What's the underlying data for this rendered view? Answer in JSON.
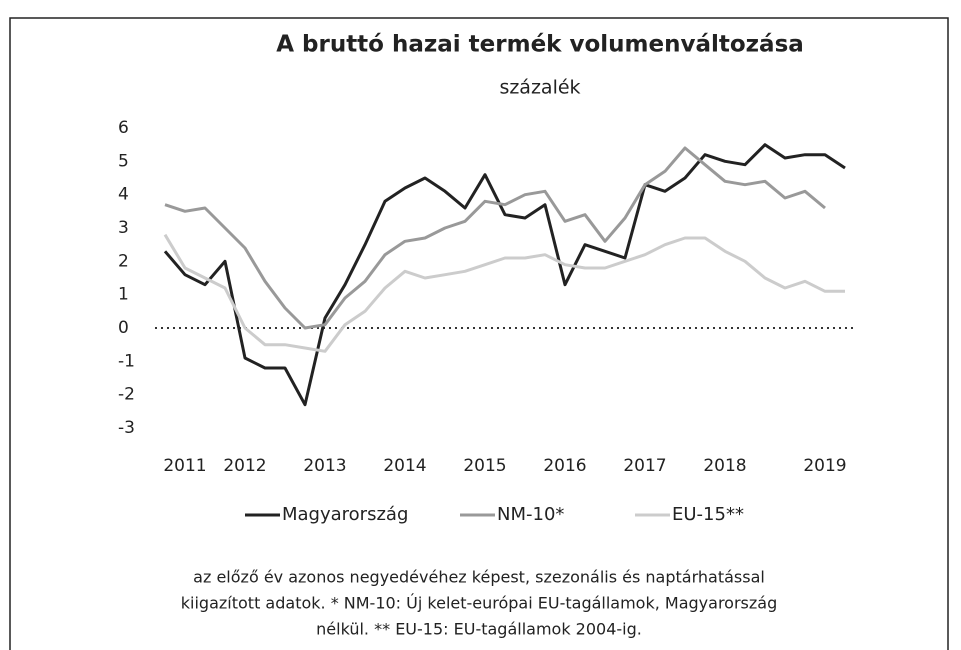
{
  "chart_data": {
    "type": "line",
    "title": "A bruttó hazai termék volumenváltozása",
    "subtitle": "százalék",
    "categories": [
      null,
      "2011",
      null,
      null,
      "2012",
      null,
      null,
      null,
      "2013",
      null,
      null,
      null,
      "2014",
      null,
      null,
      null,
      "2015",
      null,
      null,
      null,
      "2016",
      null,
      null,
      null,
      "2017",
      null,
      null,
      null,
      "2018",
      null,
      null,
      null,
      null,
      "2019",
      null
    ],
    "series": [
      {
        "name": "Magyarország",
        "color": "#222222",
        "values": [
          2.3,
          1.6,
          1.3,
          2.0,
          -0.9,
          -1.2,
          -1.2,
          -2.3,
          0.3,
          1.3,
          2.5,
          3.8,
          4.2,
          4.5,
          4.1,
          3.6,
          4.6,
          3.4,
          3.3,
          3.7,
          1.3,
          2.5,
          2.3,
          2.1,
          4.3,
          4.1,
          4.5,
          5.2,
          5.0,
          4.9,
          5.5,
          5.1,
          5.2,
          5.2,
          4.8
        ]
      },
      {
        "name": "NM-10*",
        "color": "#999999",
        "values": [
          3.7,
          3.5,
          3.6,
          3.0,
          2.4,
          1.4,
          0.6,
          0.0,
          0.1,
          0.9,
          1.4,
          2.2,
          2.6,
          2.7,
          3.0,
          3.2,
          3.8,
          3.7,
          4.0,
          4.1,
          3.2,
          3.4,
          2.6,
          3.3,
          4.3,
          4.7,
          5.4,
          4.9,
          4.4,
          4.3,
          4.4,
          3.9,
          4.1,
          3.6,
          null
        ]
      },
      {
        "name": "EU-15**",
        "color": "#cccccc",
        "values": [
          2.8,
          1.8,
          1.5,
          1.2,
          0.0,
          -0.5,
          -0.5,
          -0.6,
          -0.7,
          0.1,
          0.5,
          1.2,
          1.7,
          1.5,
          1.6,
          1.7,
          1.9,
          2.1,
          2.1,
          2.2,
          1.9,
          1.8,
          1.8,
          2.0,
          2.2,
          2.5,
          2.7,
          2.7,
          2.3,
          2.0,
          1.5,
          1.2,
          1.4,
          1.1,
          1.1
        ]
      }
    ],
    "ylim": [
      -3,
      6
    ],
    "yticks": [
      -3,
      -2,
      -1,
      0,
      1,
      2,
      3,
      4,
      5,
      6
    ],
    "zero_line": true,
    "legend": "bottom",
    "footnote": [
      "az előző év azonos negyedévéhez képest, szezonális és naptárhatással",
      "kiigazított adatok. * NM-10: Új kelet-európai EU-tagállamok, Magyarország",
      "nélkül.  ** EU-15: EU-tagállamok 2004-ig."
    ]
  }
}
